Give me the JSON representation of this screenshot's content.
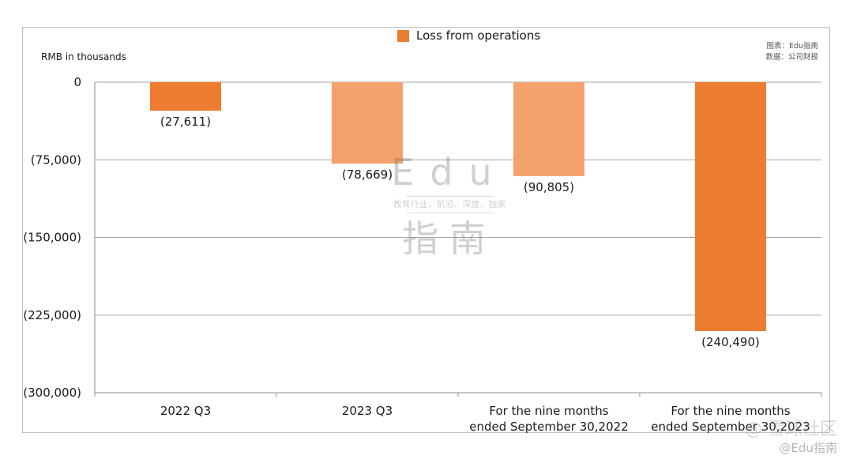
{
  "chart_data": {
    "type": "bar",
    "categories": [
      [
        "2022 Q3"
      ],
      [
        "2023 Q3"
      ],
      [
        "For the nine months",
        "ended September 30,2022"
      ],
      [
        "For the nine months",
        "ended September 30,2023"
      ]
    ],
    "series": [
      {
        "name": "Loss from operations",
        "values": [
          -27611,
          -78669,
          -90805,
          -240490
        ]
      }
    ],
    "data_labels": [
      "(27,611)",
      "(78,669)",
      "(90,805)",
      "(240,490)"
    ],
    "bar_colors": [
      "#ed7d31",
      "#f4a16e",
      "#f4a16e",
      "#ed7d31"
    ],
    "ylabel": "RMB in thousands",
    "ylim": [
      -300000,
      0
    ],
    "yticks": [
      0,
      -75000,
      -150000,
      -225000,
      -300000
    ],
    "ytick_labels": [
      "0",
      "(75,000)",
      "(150,000)",
      "(225,000)",
      "(300,000)"
    ],
    "grid": true,
    "legend_position": "top-center"
  },
  "legend": {
    "label": "Loss from operations",
    "color": "#ed7d31"
  },
  "credit": {
    "line1": "图表：Edu指南",
    "line2": "数据：公司财报"
  },
  "watermark": {
    "brand": "Edu",
    "tagline": "教育行业，前沿、深度、独家",
    "brand_cn": "指南",
    "corner_line1": "@ 雪球社区",
    "corner_line2": "@Edu指南"
  }
}
